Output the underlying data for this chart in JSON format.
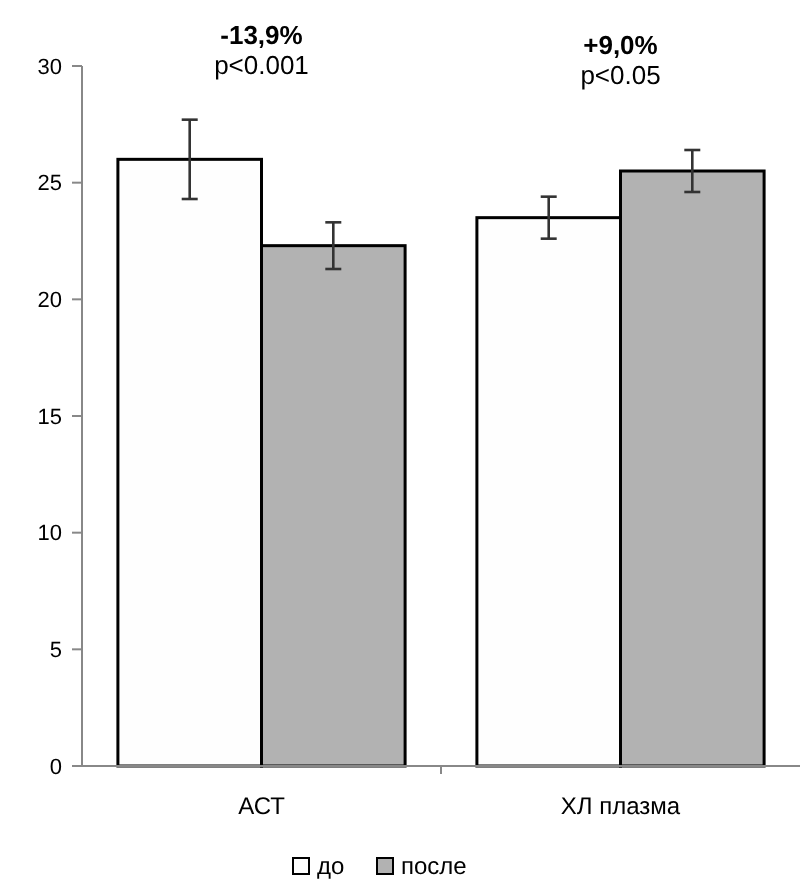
{
  "chart_data": {
    "type": "bar",
    "categories": [
      "АСТ",
      "ХЛ плазма"
    ],
    "series": [
      {
        "name": "до",
        "color": "#fefefe",
        "values": [
          26.0,
          23.5
        ],
        "errors": [
          1.7,
          0.9
        ]
      },
      {
        "name": "после",
        "color": "#b2b2b2",
        "values": [
          22.3,
          25.5
        ],
        "errors": [
          1.0,
          0.9
        ]
      }
    ],
    "ylim": [
      0,
      30
    ],
    "yticks": [
      0,
      5,
      10,
      15,
      20,
      25,
      30
    ],
    "annotations": [
      "-13,9%",
      "p<0.001",
      "+9,0%",
      "p<0.05"
    ],
    "grid": false,
    "legend": "bottom"
  }
}
